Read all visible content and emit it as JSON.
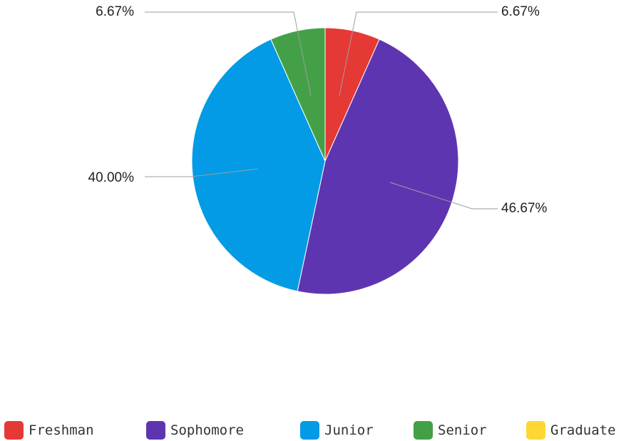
{
  "chart_data": {
    "type": "pie",
    "title": "",
    "categories": [
      "Freshman",
      "Sophomore",
      "Junior",
      "Senior",
      "Graduate"
    ],
    "values": [
      6.67,
      46.67,
      40.0,
      6.67,
      0
    ],
    "labels": [
      "6.67%",
      "46.67%",
      "40.00%",
      "6.67%",
      ""
    ],
    "colors": [
      "#e53935",
      "#5e35b1",
      "#039be5",
      "#43a047",
      "#fdd835"
    ],
    "start_angle_deg": 0,
    "direction": "clockwise",
    "legend_position": "bottom"
  },
  "legend": {
    "items": [
      {
        "label": "Freshman",
        "color": "#e53935"
      },
      {
        "label": "Sophomore",
        "color": "#5e35b1"
      },
      {
        "label": "Junior",
        "color": "#039be5"
      },
      {
        "label": "Senior",
        "color": "#43a047"
      },
      {
        "label": "Graduate",
        "color": "#fdd835"
      }
    ]
  }
}
